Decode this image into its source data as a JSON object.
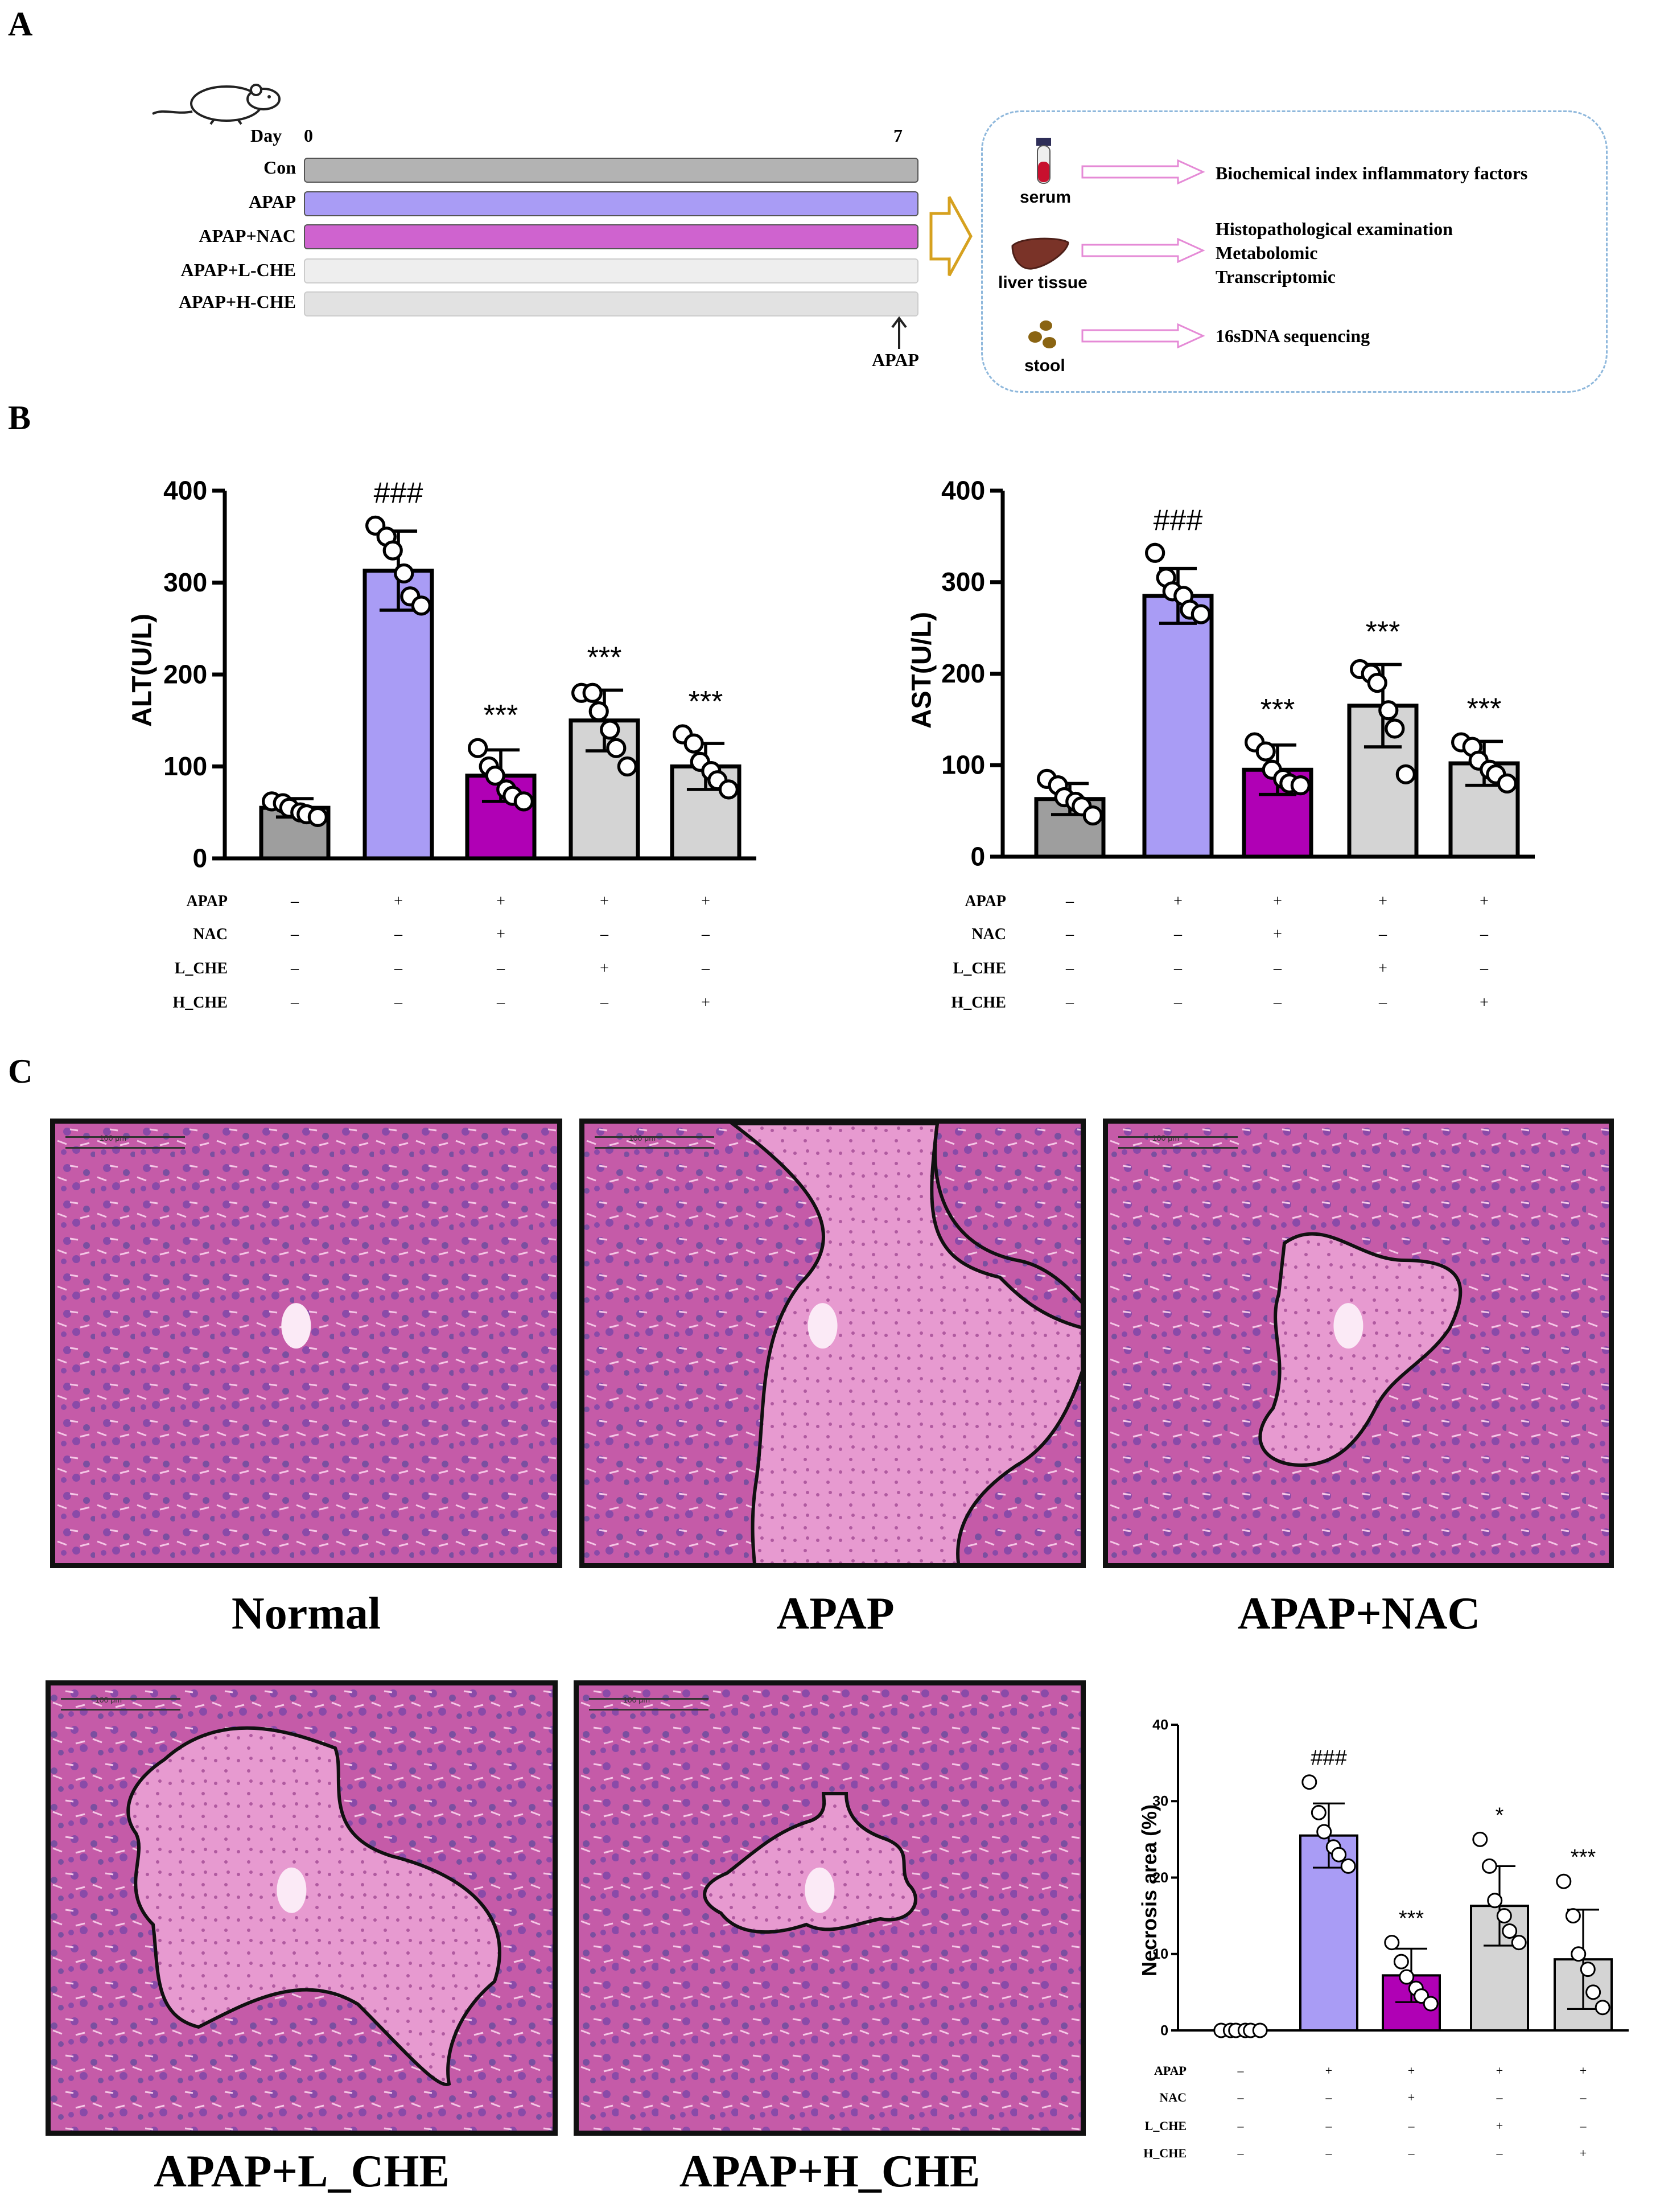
{
  "panel_letters": {
    "a": "A",
    "b": "B",
    "c": "C"
  },
  "design": {
    "day_label": "Day",
    "day_start": "0",
    "day_end": "7",
    "groups": [
      "Con",
      "APAP",
      "APAP+NAC",
      "APAP+L-CHE",
      "APAP+H-CHE"
    ],
    "group_colors": [
      "#b3b3b3",
      "#a99cf5",
      "#cf63cf",
      "#eeeeee",
      "#e2e2e2"
    ],
    "apap_marker": "APAP",
    "samples": [
      {
        "label": "serum",
        "icon": "blood-tube-icon",
        "outcomes": [
          "Biochemical index inflammatory factors"
        ]
      },
      {
        "label": "liver tissue",
        "icon": "liver-icon",
        "outcomes": [
          "Histopathological examination",
          "Metabolomic",
          "Transcriptomic"
        ]
      },
      {
        "label": "stool",
        "icon": "stool-icon",
        "outcomes": [
          "16sDNA sequencing"
        ]
      }
    ]
  },
  "treatment_table": {
    "rows": [
      {
        "name": "APAP",
        "signs": [
          "–",
          "+",
          "+",
          "+",
          "+"
        ]
      },
      {
        "name": "NAC",
        "signs": [
          "–",
          "–",
          "+",
          "–",
          "–"
        ]
      },
      {
        "name": "L_CHE",
        "signs": [
          "–",
          "–",
          "–",
          "+",
          "–"
        ]
      },
      {
        "name": "H_CHE",
        "signs": [
          "–",
          "–",
          "–",
          "–",
          "+"
        ]
      }
    ]
  },
  "histology": {
    "scale_bar": "100 μm",
    "labels": [
      "Normal",
      "APAP",
      "APAP+NAC",
      "APAP+L_CHE",
      "APAP+H_CHE"
    ]
  },
  "colors": {
    "con": "#9e9e9e",
    "apap": "#a99cf5",
    "nac": "#b000b5",
    "l_che": "#d4d4d4",
    "h_che": "#d4d4d4"
  },
  "chart_data": [
    {
      "id": "alt",
      "type": "bar",
      "title": "",
      "ylabel": "ALT(U/L)",
      "xlabel": "",
      "ylim": [
        0,
        400
      ],
      "yticks": [
        "0",
        "100",
        "200",
        "300",
        "400"
      ],
      "categories": [
        "Con",
        "APAP",
        "APAP+NAC",
        "APAP+L_CHE",
        "APAP+H_CHE"
      ],
      "values": [
        55,
        313,
        90,
        150,
        100
      ],
      "sd": [
        10,
        43,
        28,
        33,
        25
      ],
      "points": [
        [
          62,
          60,
          55,
          50,
          48,
          45
        ],
        [
          362,
          350,
          335,
          310,
          285,
          275
        ],
        [
          120,
          100,
          90,
          75,
          68,
          62
        ],
        [
          180,
          180,
          160,
          140,
          120,
          100
        ],
        [
          135,
          125,
          105,
          95,
          85,
          75
        ]
      ],
      "annotations": [
        "",
        "###",
        "***",
        "***",
        "***"
      ]
    },
    {
      "id": "ast",
      "type": "bar",
      "title": "",
      "ylabel": "AST(U/L)",
      "xlabel": "",
      "ylim": [
        0,
        400
      ],
      "yticks": [
        "0",
        "100",
        "200",
        "300",
        "400"
      ],
      "categories": [
        "Con",
        "APAP",
        "APAP+NAC",
        "APAP+L_CHE",
        "APAP+H_CHE"
      ],
      "values": [
        63,
        285,
        95,
        165,
        102
      ],
      "sd": [
        17,
        30,
        27,
        45,
        24
      ],
      "points": [
        [
          85,
          78,
          65,
          60,
          55,
          45
        ],
        [
          332,
          305,
          290,
          285,
          270,
          265
        ],
        [
          125,
          115,
          95,
          85,
          80,
          78
        ],
        [
          205,
          200,
          190,
          160,
          140,
          90
        ],
        [
          125,
          120,
          105,
          95,
          90,
          80
        ]
      ],
      "annotations": [
        "",
        "###",
        "***",
        "***",
        "***"
      ]
    },
    {
      "id": "necrosis",
      "type": "bar",
      "title": "",
      "ylabel": "Necrosis area (%)",
      "xlabel": "",
      "ylim": [
        0,
        40
      ],
      "yticks": [
        "0",
        "10",
        "20",
        "30",
        "40"
      ],
      "categories": [
        "Con",
        "APAP",
        "APAP+NAC",
        "APAP+L_CHE",
        "APAP+H_CHE"
      ],
      "values": [
        0,
        25.5,
        7.2,
        16.3,
        9.3
      ],
      "sd": [
        0,
        4.2,
        3.5,
        5.2,
        6.5
      ],
      "points": [
        [
          0,
          0,
          0,
          0,
          0,
          0
        ],
        [
          32.5,
          28.5,
          26,
          24,
          23,
          21.5
        ],
        [
          11.5,
          9,
          7,
          5.5,
          4.5,
          3.5
        ],
        [
          25,
          21.5,
          17,
          15,
          13,
          11.5
        ],
        [
          19.5,
          15,
          10,
          8,
          5,
          3
        ]
      ],
      "annotations": [
        "",
        "###",
        "***",
        "*",
        "***"
      ]
    }
  ]
}
